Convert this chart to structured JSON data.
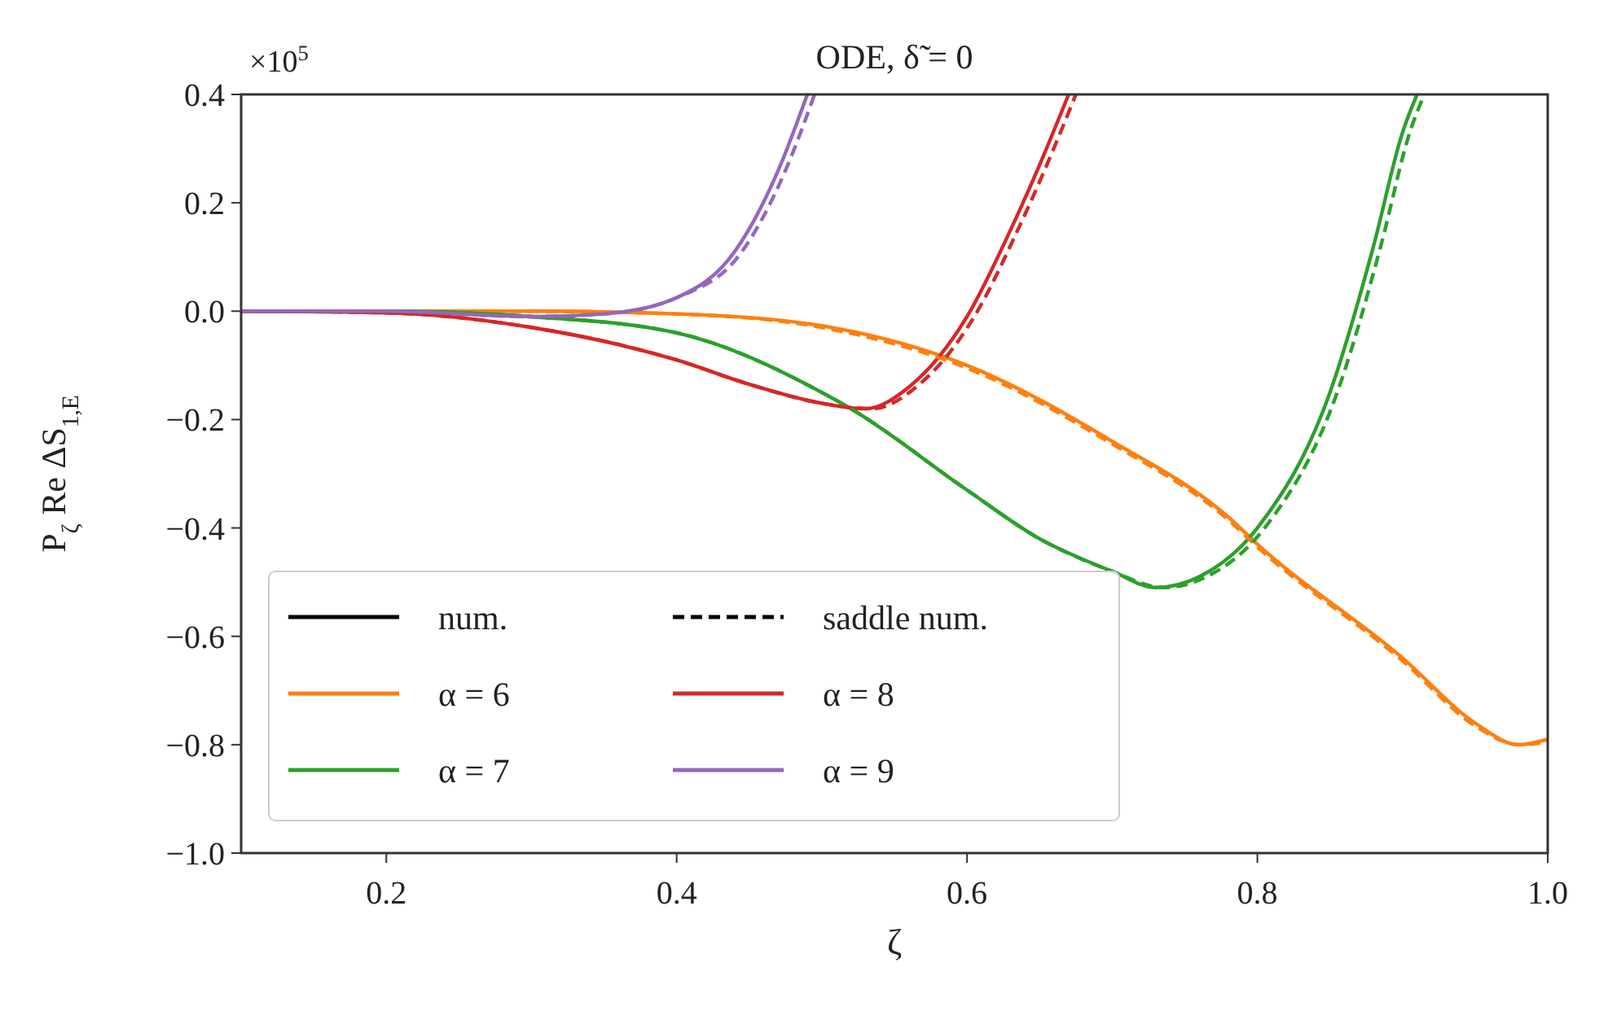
{
  "chart_data": {
    "type": "line",
    "title": "ODE, δ̃ = 0",
    "xlabel": "ζ",
    "ylabel": "P$_{ζ}$ Re ΔS$_{1,E}$",
    "annotations": [
      "×10$^{5}$"
    ],
    "xlim": [
      0.1,
      1.0
    ],
    "ylim": [
      -1.0,
      0.4
    ],
    "xticks": [
      {
        "value": 0.2,
        "label": "0.2"
      },
      {
        "value": 0.4,
        "label": "0.4"
      },
      {
        "value": 0.6,
        "label": "0.6"
      },
      {
        "value": 0.8,
        "label": "0.8"
      },
      {
        "value": 1.0,
        "label": "1.0"
      }
    ],
    "yticks": [
      {
        "value": -1.0,
        "label": "−1.0"
      },
      {
        "value": -0.8,
        "label": "−0.8"
      },
      {
        "value": -0.6,
        "label": "−0.6"
      },
      {
        "value": -0.4,
        "label": "−0.4"
      },
      {
        "value": -0.2,
        "label": "−0.2"
      },
      {
        "value": 0.0,
        "label": "0.0"
      },
      {
        "value": 0.2,
        "label": "0.2"
      },
      {
        "value": 0.4,
        "label": "0.4"
      }
    ],
    "grid": false,
    "legend": "bottom left",
    "marker": "none",
    "series": [
      {
        "name": "num.",
        "color": "#000000",
        "line_style": "solid"
      },
      {
        "name": "α = 6",
        "color": "#ff7f0e",
        "line_style": "solid",
        "x": [
          0.1,
          0.2,
          0.3,
          0.4,
          0.5,
          0.6,
          0.7,
          0.78,
          0.8,
          0.9,
          0.95,
          0.98,
          1.0
        ],
        "values": [
          0,
          0,
          0,
          -0.005,
          -0.027,
          -0.1,
          -0.24,
          -0.38,
          -0.43,
          -0.64,
          -0.76,
          -0.8,
          -0.79
        ]
      },
      {
        "name": "α = 7",
        "color": "#2ca02c",
        "line_style": "solid",
        "x": [
          0.1,
          0.2,
          0.3,
          0.4,
          0.5,
          0.52,
          0.6,
          0.65,
          0.7,
          0.73,
          0.76,
          0.8,
          0.85,
          0.88,
          0.9,
          0.91
        ],
        "values": [
          0,
          0,
          -0.01,
          -0.04,
          -0.15,
          -0.18,
          -0.33,
          -0.42,
          -0.48,
          -0.51,
          -0.49,
          -0.4,
          -0.15,
          0.12,
          0.33,
          0.4
        ]
      },
      {
        "name": "saddle num.",
        "color": "#000000",
        "line_style": "dashed"
      },
      {
        "name": "α = 8",
        "color": "#d62728",
        "line_style": "solid",
        "x": [
          0.1,
          0.2,
          0.3,
          0.4,
          0.45,
          0.5,
          0.53,
          0.56,
          0.6,
          0.63,
          0.65,
          0.67
        ],
        "values": [
          0,
          -0.003,
          -0.03,
          -0.09,
          -0.135,
          -0.17,
          -0.18,
          -0.14,
          -0.01,
          0.15,
          0.27,
          0.4
        ]
      },
      {
        "name": "α = 9",
        "color": "#9467bd",
        "line_style": "solid",
        "x": [
          0.1,
          0.2,
          0.3,
          0.35,
          0.4,
          0.44,
          0.47,
          0.49
        ],
        "values": [
          0,
          0,
          -0.01,
          -0.005,
          0.025,
          0.11,
          0.26,
          0.4
        ]
      },
      {
        "color": "#ff7f0e",
        "line_style": "dashed",
        "x": [
          0.1,
          0.2,
          0.3,
          0.4,
          0.5,
          0.6,
          0.7,
          0.78,
          0.8,
          0.9,
          0.95,
          0.98,
          1.0
        ],
        "values": [
          0,
          0,
          0,
          -0.005,
          -0.03,
          -0.105,
          -0.245,
          -0.385,
          -0.435,
          -0.645,
          -0.765,
          -0.8,
          -0.795
        ]
      },
      {
        "color": "#2ca02c",
        "line_style": "dashed",
        "x": [
          0.1,
          0.2,
          0.3,
          0.4,
          0.5,
          0.52,
          0.6,
          0.65,
          0.7,
          0.735,
          0.765,
          0.805,
          0.855,
          0.885,
          0.905,
          0.915
        ],
        "values": [
          0,
          0,
          -0.01,
          -0.04,
          -0.15,
          -0.18,
          -0.33,
          -0.42,
          -0.48,
          -0.51,
          -0.49,
          -0.4,
          -0.15,
          0.12,
          0.33,
          0.4
        ]
      },
      {
        "color": "#d62728",
        "line_style": "dashed",
        "x": [
          0.1,
          0.2,
          0.3,
          0.4,
          0.45,
          0.5,
          0.535,
          0.565,
          0.605,
          0.635,
          0.655,
          0.675
        ],
        "values": [
          0,
          -0.003,
          -0.03,
          -0.09,
          -0.135,
          -0.17,
          -0.18,
          -0.14,
          -0.01,
          0.15,
          0.27,
          0.4
        ]
      },
      {
        "color": "#9467bd",
        "line_style": "dashed",
        "x": [
          0.1,
          0.2,
          0.3,
          0.35,
          0.4,
          0.445,
          0.475,
          0.495
        ],
        "values": [
          0,
          0,
          -0.01,
          -0.005,
          0.025,
          0.11,
          0.26,
          0.4
        ]
      }
    ]
  }
}
